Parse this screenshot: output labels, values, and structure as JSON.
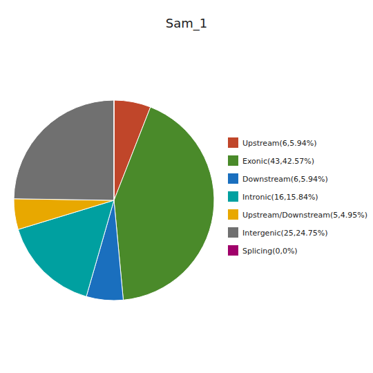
{
  "chart_data": {
    "type": "pie",
    "title": "Sam_1",
    "categories": [
      "Upstream(6,5.94%)",
      "Exonic(43,42.57%)",
      "Downstream(6,5.94%)",
      "Intronic(16,15.84%)",
      "Upstream/Downstream(5,4.95%)",
      "Intergenic(25,24.75%)",
      "Splicing(0,0%)"
    ],
    "values": [
      5.94,
      42.57,
      5.94,
      15.84,
      4.95,
      24.75,
      0.001
    ],
    "colors": [
      "#c0462a",
      "#4a8a2a",
      "#1a6fbe",
      "#00a0a0",
      "#e8a800",
      "#707070",
      "#a0006a"
    ]
  }
}
